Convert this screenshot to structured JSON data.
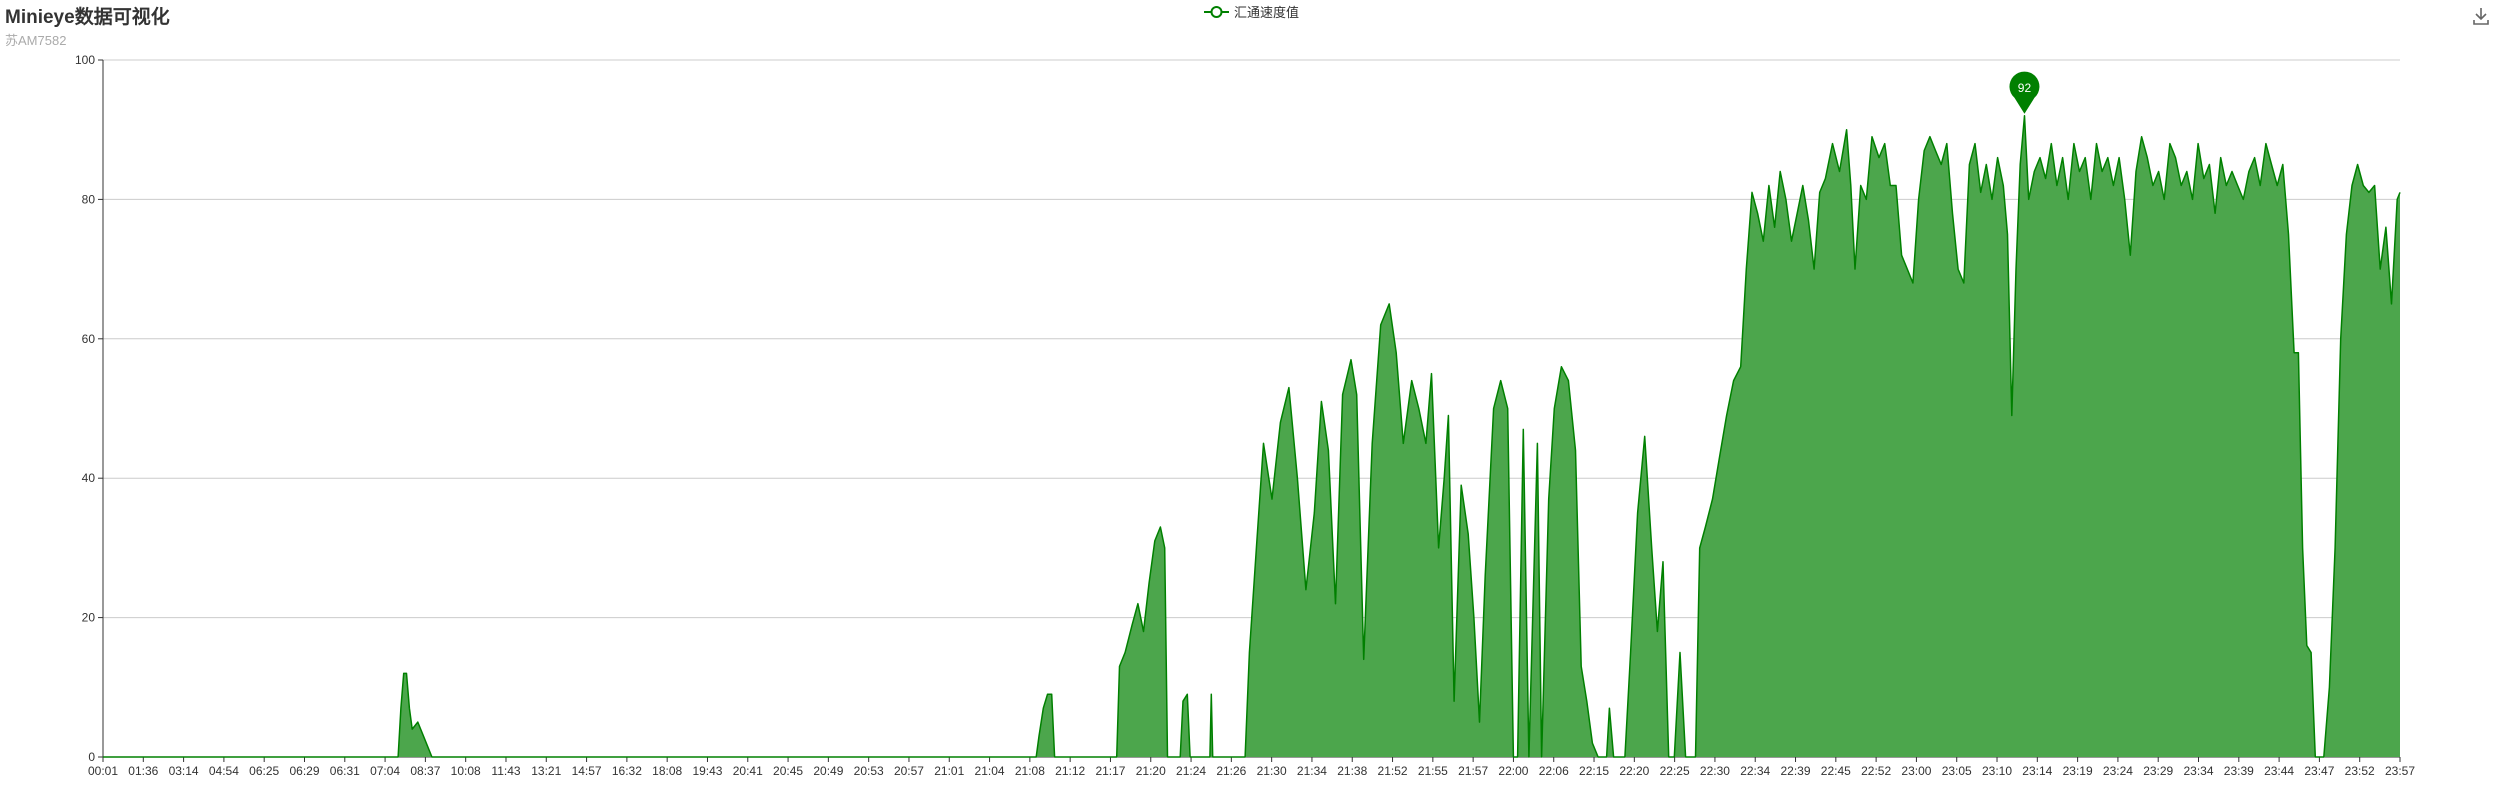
{
  "title": "Minieye数据可视化",
  "subtitle": "苏AM7582",
  "legend_label": "汇通速度值",
  "toolbox_icon": "download-icon",
  "colors": {
    "line": "#008000",
    "area": "#4ca64c",
    "grid": "#cccccc",
    "axis": "#333333",
    "marker": "#008000"
  },
  "chart_data": {
    "type": "area",
    "series": [
      {
        "name": "汇通速度值",
        "points": [
          [
            0,
            0
          ],
          [
            209,
            0
          ],
          [
            211,
            7
          ],
          [
            213,
            12
          ],
          [
            215,
            12
          ],
          [
            217,
            7
          ],
          [
            219,
            4
          ],
          [
            223,
            5
          ],
          [
            227,
            3
          ],
          [
            231,
            1
          ],
          [
            233,
            0
          ],
          [
            661,
            0
          ],
          [
            663,
            3
          ],
          [
            666,
            7
          ],
          [
            669,
            9
          ],
          [
            672,
            9
          ],
          [
            674,
            0
          ],
          [
            718,
            0
          ],
          [
            720,
            13
          ],
          [
            724,
            15
          ],
          [
            729,
            19
          ],
          [
            733,
            22
          ],
          [
            737,
            18
          ],
          [
            741,
            25
          ],
          [
            745,
            31
          ],
          [
            749,
            33
          ],
          [
            752,
            30
          ],
          [
            754,
            0
          ],
          [
            763,
            0
          ],
          [
            765,
            8
          ],
          [
            768,
            9
          ],
          [
            770,
            0
          ],
          [
            784,
            0
          ],
          [
            785,
            9
          ],
          [
            786,
            0
          ],
          [
            809,
            0
          ],
          [
            812,
            15
          ],
          [
            817,
            30
          ],
          [
            822,
            45
          ],
          [
            828,
            37
          ],
          [
            834,
            48
          ],
          [
            840,
            53
          ],
          [
            846,
            40
          ],
          [
            852,
            24
          ],
          [
            858,
            35
          ],
          [
            863,
            51
          ],
          [
            868,
            44
          ],
          [
            873,
            22
          ],
          [
            878,
            52
          ],
          [
            884,
            57
          ],
          [
            888,
            52
          ],
          [
            893,
            14
          ],
          [
            899,
            45
          ],
          [
            905,
            62
          ],
          [
            911,
            65
          ],
          [
            916,
            58
          ],
          [
            921,
            45
          ],
          [
            927,
            54
          ],
          [
            932,
            50
          ],
          [
            937,
            45
          ],
          [
            941,
            55
          ],
          [
            946,
            30
          ],
          [
            950,
            40
          ],
          [
            953,
            49
          ],
          [
            957,
            8
          ],
          [
            962,
            39
          ],
          [
            967,
            32
          ],
          [
            971,
            20
          ],
          [
            975,
            5
          ],
          [
            979,
            26
          ],
          [
            985,
            50
          ],
          [
            990,
            54
          ],
          [
            995,
            50
          ],
          [
            999,
            0
          ],
          [
            1002,
            0
          ],
          [
            1006,
            47
          ],
          [
            1010,
            0
          ],
          [
            1016,
            45
          ],
          [
            1019,
            0
          ],
          [
            1024,
            37
          ],
          [
            1028,
            50
          ],
          [
            1033,
            56
          ],
          [
            1038,
            54
          ],
          [
            1043,
            44
          ],
          [
            1047,
            13
          ],
          [
            1051,
            8
          ],
          [
            1055,
            2
          ],
          [
            1059,
            0
          ],
          [
            1065,
            0
          ],
          [
            1067,
            7
          ],
          [
            1070,
            0
          ],
          [
            1078,
            0
          ],
          [
            1082,
            15
          ],
          [
            1087,
            35
          ],
          [
            1092,
            46
          ],
          [
            1097,
            30
          ],
          [
            1101,
            18
          ],
          [
            1105,
            28
          ],
          [
            1109,
            0
          ],
          [
            1113,
            0
          ],
          [
            1117,
            15
          ],
          [
            1121,
            0
          ],
          [
            1128,
            0
          ],
          [
            1131,
            30
          ],
          [
            1135,
            33
          ],
          [
            1140,
            37
          ],
          [
            1145,
            43
          ],
          [
            1150,
            49
          ],
          [
            1155,
            54
          ],
          [
            1160,
            56
          ],
          [
            1164,
            70
          ],
          [
            1168,
            81
          ],
          [
            1172,
            78
          ],
          [
            1176,
            74
          ],
          [
            1180,
            82
          ],
          [
            1184,
            76
          ],
          [
            1188,
            84
          ],
          [
            1192,
            80
          ],
          [
            1196,
            74
          ],
          [
            1200,
            78
          ],
          [
            1204,
            82
          ],
          [
            1208,
            77
          ],
          [
            1212,
            70
          ],
          [
            1216,
            81
          ],
          [
            1220,
            83
          ],
          [
            1225,
            88
          ],
          [
            1230,
            84
          ],
          [
            1235,
            90
          ],
          [
            1238,
            82
          ],
          [
            1241,
            70
          ],
          [
            1245,
            82
          ],
          [
            1249,
            80
          ],
          [
            1253,
            89
          ],
          [
            1258,
            86
          ],
          [
            1262,
            88
          ],
          [
            1266,
            82
          ],
          [
            1270,
            82
          ],
          [
            1274,
            72
          ],
          [
            1278,
            70
          ],
          [
            1282,
            68
          ],
          [
            1286,
            80
          ],
          [
            1290,
            87
          ],
          [
            1294,
            89
          ],
          [
            1298,
            87
          ],
          [
            1302,
            85
          ],
          [
            1306,
            88
          ],
          [
            1310,
            78
          ],
          [
            1314,
            70
          ],
          [
            1318,
            68
          ],
          [
            1322,
            85
          ],
          [
            1326,
            88
          ],
          [
            1330,
            81
          ],
          [
            1334,
            85
          ],
          [
            1338,
            80
          ],
          [
            1342,
            86
          ],
          [
            1346,
            82
          ],
          [
            1349,
            75
          ],
          [
            1352,
            49
          ],
          [
            1355,
            70
          ],
          [
            1358,
            85
          ],
          [
            1361,
            92
          ],
          [
            1364,
            80
          ],
          [
            1368,
            84
          ],
          [
            1372,
            86
          ],
          [
            1376,
            83
          ],
          [
            1380,
            88
          ],
          [
            1384,
            82
          ],
          [
            1388,
            86
          ],
          [
            1392,
            80
          ],
          [
            1396,
            88
          ],
          [
            1400,
            84
          ],
          [
            1404,
            86
          ],
          [
            1408,
            80
          ],
          [
            1412,
            88
          ],
          [
            1416,
            84
          ],
          [
            1420,
            86
          ],
          [
            1424,
            82
          ],
          [
            1428,
            86
          ],
          [
            1432,
            80
          ],
          [
            1436,
            72
          ],
          [
            1440,
            84
          ],
          [
            1444,
            89
          ],
          [
            1448,
            86
          ],
          [
            1452,
            82
          ],
          [
            1456,
            84
          ],
          [
            1460,
            80
          ],
          [
            1464,
            88
          ],
          [
            1468,
            86
          ],
          [
            1472,
            82
          ],
          [
            1476,
            84
          ],
          [
            1480,
            80
          ],
          [
            1484,
            88
          ],
          [
            1488,
            83
          ],
          [
            1492,
            85
          ],
          [
            1496,
            78
          ],
          [
            1500,
            86
          ],
          [
            1504,
            82
          ],
          [
            1508,
            84
          ],
          [
            1512,
            82
          ],
          [
            1516,
            80
          ],
          [
            1520,
            84
          ],
          [
            1524,
            86
          ],
          [
            1528,
            82
          ],
          [
            1532,
            88
          ],
          [
            1536,
            85
          ],
          [
            1540,
            82
          ],
          [
            1544,
            85
          ],
          [
            1548,
            75
          ],
          [
            1552,
            58
          ],
          [
            1555,
            58
          ],
          [
            1558,
            30
          ],
          [
            1561,
            16
          ],
          [
            1564,
            15
          ],
          [
            1567,
            0
          ],
          [
            1573,
            0
          ],
          [
            1577,
            10
          ],
          [
            1581,
            30
          ],
          [
            1585,
            60
          ],
          [
            1589,
            75
          ],
          [
            1593,
            82
          ],
          [
            1597,
            85
          ],
          [
            1601,
            82
          ],
          [
            1605,
            81
          ],
          [
            1609,
            82
          ],
          [
            1613,
            70
          ],
          [
            1617,
            76
          ],
          [
            1621,
            65
          ],
          [
            1625,
            80
          ],
          [
            1627,
            81
          ]
        ]
      }
    ],
    "x_categories": [
      "00:01",
      "01:36",
      "03:14",
      "04:54",
      "06:25",
      "06:29",
      "06:31",
      "07:04",
      "08:37",
      "10:08",
      "11:43",
      "13:21",
      "14:57",
      "16:32",
      "18:08",
      "19:43",
      "20:41",
      "20:45",
      "20:49",
      "20:53",
      "20:57",
      "21:01",
      "21:04",
      "21:08",
      "21:12",
      "21:17",
      "21:20",
      "21:24",
      "21:26",
      "21:30",
      "21:34",
      "21:38",
      "21:52",
      "21:55",
      "21:57",
      "22:00",
      "22:06",
      "22:15",
      "22:20",
      "22:25",
      "22:30",
      "22:34",
      "22:39",
      "22:45",
      "22:52",
      "23:00",
      "23:05",
      "23:10",
      "23:14",
      "23:19",
      "23:24",
      "23:29",
      "23:34",
      "23:39",
      "23:44",
      "23:47",
      "23:52",
      "23:57"
    ],
    "y_ticks": [
      "0",
      "20",
      "40",
      "60",
      "80",
      "100"
    ],
    "ylim": [
      0,
      100
    ],
    "x_count": 1628,
    "grid": true,
    "legend_position": "top-center",
    "max_marker": {
      "value": "92",
      "index": 1361
    }
  }
}
